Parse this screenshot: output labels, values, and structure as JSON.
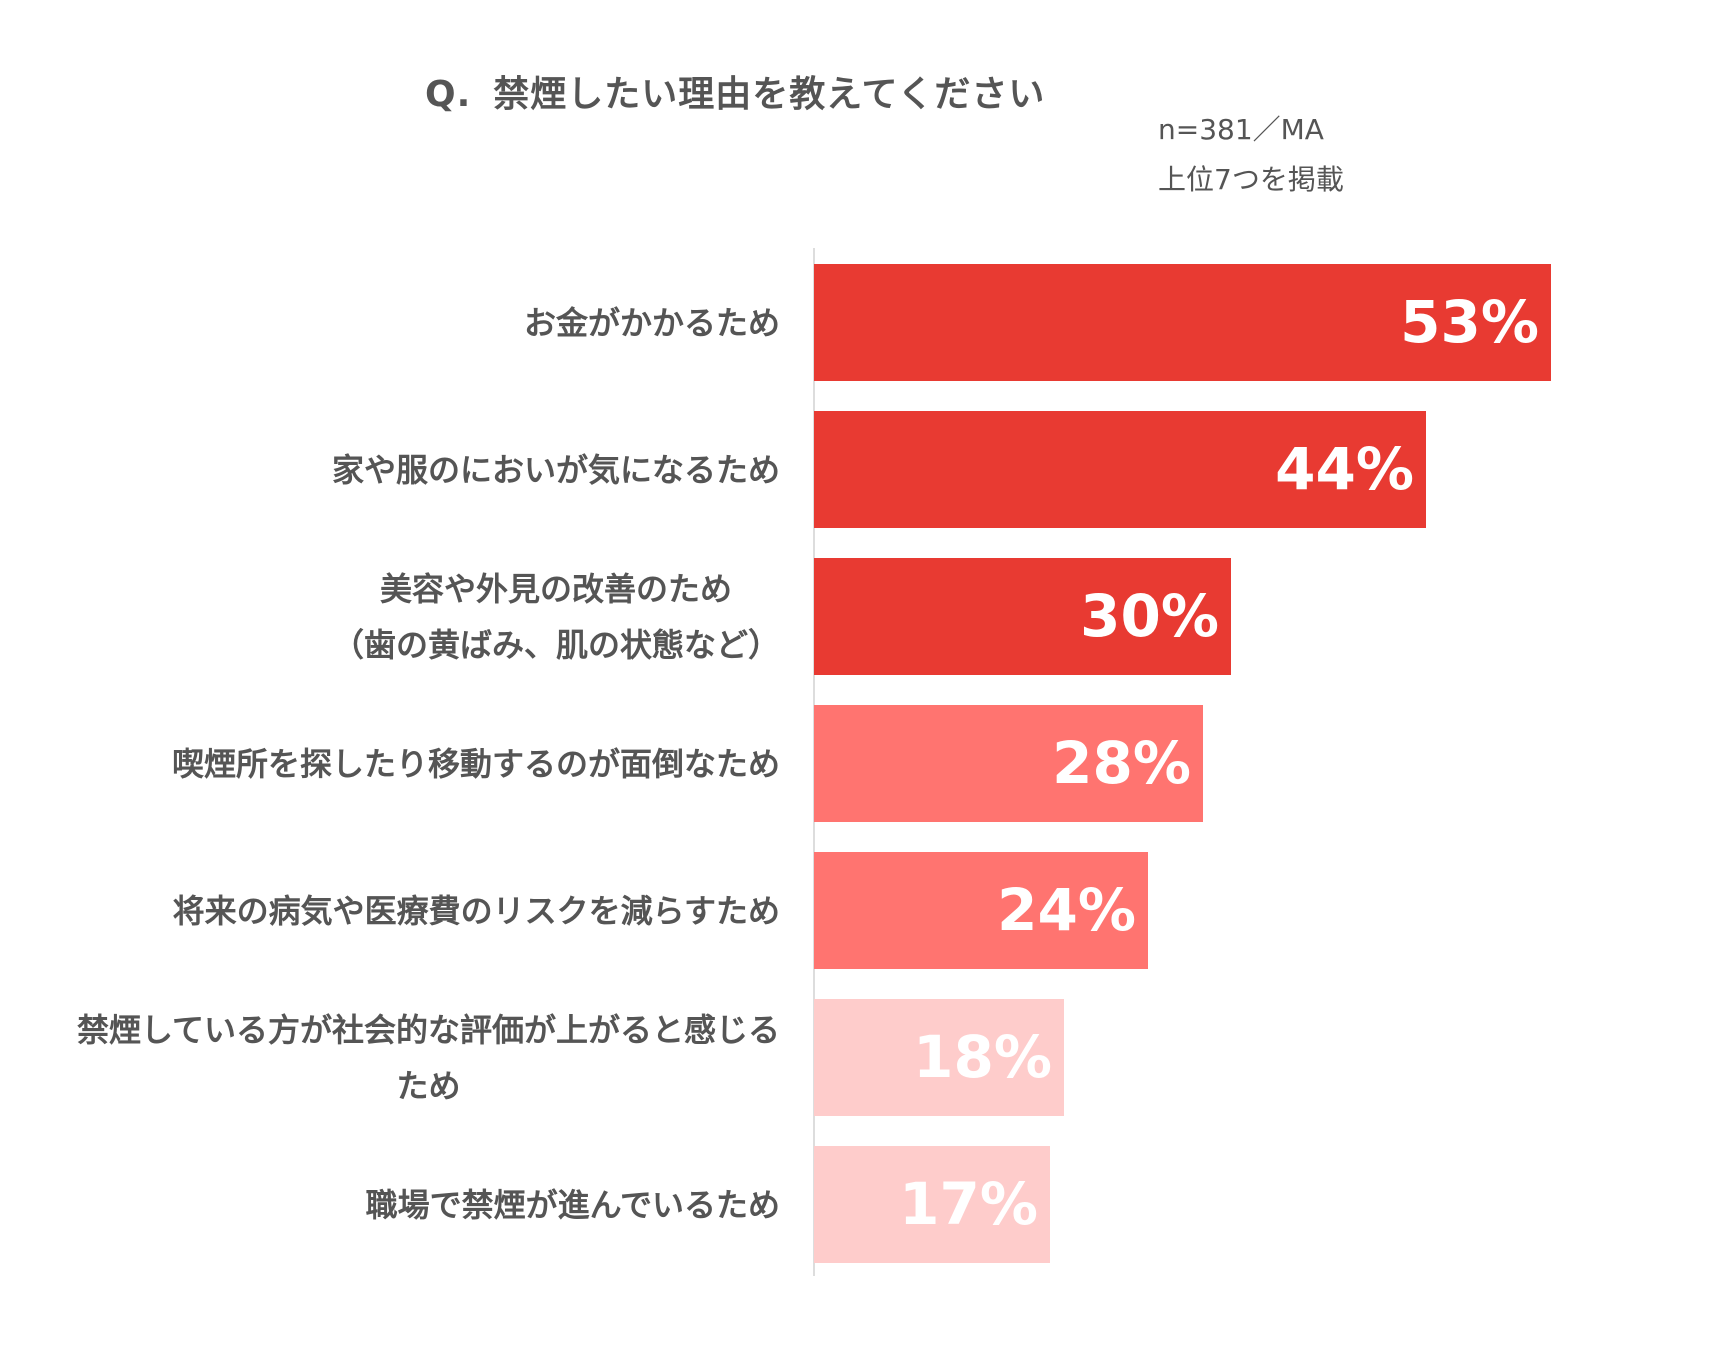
{
  "title": {
    "prefix": "Q.",
    "text": "禁煙したい理由を教えてください"
  },
  "notes": {
    "sample": "n=381／MA",
    "scope": "上位7つを掲載"
  },
  "colors": {
    "dark": "#e83a32",
    "medium": "#ff7470",
    "light": "#fecccb",
    "axis": "#dddddd",
    "text": "#555555"
  },
  "chart_data": {
    "type": "bar",
    "orientation": "horizontal",
    "xlim": [
      0,
      60
    ],
    "grid": false,
    "legend": "none",
    "categories": [
      [
        "お金がかかるため"
      ],
      [
        "家や服のにおいが気になるため"
      ],
      [
        "美容や外見の改善のため",
        "（歯の黄ばみ、肌の状態など）"
      ],
      [
        "喫煙所を探したり移動するのが面倒なため"
      ],
      [
        "将来の病気や医療費のリスクを減らすため"
      ],
      [
        "禁煙している方が社会的な評価が上がると感じる",
        "ため"
      ],
      [
        "職場で禁煙が進んでいるため"
      ]
    ],
    "values": [
      53,
      44,
      30,
      28,
      24,
      18,
      17
    ],
    "value_labels": [
      "53%",
      "44%",
      "30%",
      "28%",
      "24%",
      "18%",
      "17%"
    ],
    "bar_color_tiers": [
      "dark",
      "dark",
      "dark",
      "medium",
      "medium",
      "light",
      "light"
    ]
  }
}
